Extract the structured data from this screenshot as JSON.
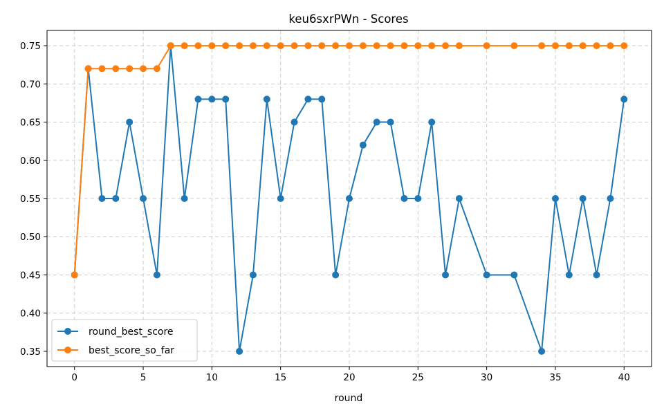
{
  "chart_data": {
    "type": "line",
    "title": "keu6sxrPWn - Scores",
    "xlabel": "round",
    "ylabel": "",
    "xlim": [
      -2,
      42
    ],
    "ylim": [
      0.33,
      0.77
    ],
    "xticks": [
      0,
      5,
      10,
      15,
      20,
      25,
      30,
      35,
      40
    ],
    "yticks": [
      0.35,
      0.4,
      0.45,
      0.5,
      0.55,
      0.6,
      0.65,
      0.7,
      0.75
    ],
    "grid": true,
    "legend_position": "lower-left",
    "series": [
      {
        "name": "round_best_score",
        "color": "#1f77b4",
        "x": [
          0,
          1,
          2,
          3,
          4,
          5,
          6,
          7,
          8,
          9,
          10,
          11,
          12,
          13,
          14,
          15,
          16,
          17,
          18,
          19,
          20,
          21,
          22,
          23,
          24,
          25,
          26,
          27,
          28,
          30,
          32,
          34,
          35,
          36,
          37,
          38,
          39,
          40
        ],
        "y": [
          0.45,
          0.72,
          0.55,
          0.55,
          0.65,
          0.55,
          0.45,
          0.75,
          0.55,
          0.68,
          0.68,
          0.68,
          0.35,
          0.45,
          0.68,
          0.55,
          0.65,
          0.68,
          0.68,
          0.45,
          0.55,
          0.62,
          0.65,
          0.65,
          0.55,
          0.55,
          0.65,
          0.45,
          0.55,
          0.45,
          0.45,
          0.35,
          0.55,
          0.45,
          0.55,
          0.45,
          0.55,
          0.68
        ]
      },
      {
        "name": "best_score_so_far",
        "color": "#ff7f0e",
        "x": [
          0,
          1,
          2,
          3,
          4,
          5,
          6,
          7,
          8,
          9,
          10,
          11,
          12,
          13,
          14,
          15,
          16,
          17,
          18,
          19,
          20,
          21,
          22,
          23,
          24,
          25,
          26,
          27,
          28,
          30,
          32,
          34,
          35,
          36,
          37,
          38,
          39,
          40
        ],
        "y": [
          0.45,
          0.72,
          0.72,
          0.72,
          0.72,
          0.72,
          0.72,
          0.75,
          0.75,
          0.75,
          0.75,
          0.75,
          0.75,
          0.75,
          0.75,
          0.75,
          0.75,
          0.75,
          0.75,
          0.75,
          0.75,
          0.75,
          0.75,
          0.75,
          0.75,
          0.75,
          0.75,
          0.75,
          0.75,
          0.75,
          0.75,
          0.75,
          0.75,
          0.75,
          0.75,
          0.75,
          0.75,
          0.75
        ]
      }
    ]
  }
}
